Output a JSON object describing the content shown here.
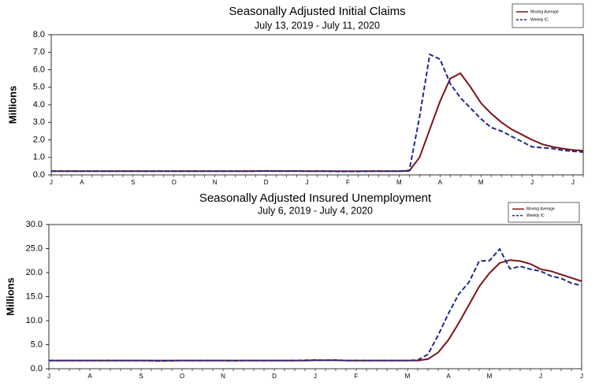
{
  "chart_data": [
    {
      "type": "line",
      "title": "Seasonally Adjusted Initial Claims",
      "subtitle": "July 13, 2019 - July 11, 2020",
      "y_label": "Millions",
      "categories": [
        "J",
        null,
        null,
        "A",
        null,
        null,
        null,
        null,
        "S",
        null,
        null,
        null,
        "O",
        null,
        null,
        null,
        "N",
        null,
        null,
        null,
        null,
        "D",
        null,
        null,
        null,
        "J",
        null,
        null,
        null,
        "F",
        null,
        null,
        null,
        null,
        "M",
        null,
        null,
        null,
        "A",
        null,
        null,
        null,
        "M",
        null,
        null,
        null,
        null,
        "J",
        null,
        null,
        null,
        "J",
        null
      ],
      "series": [
        {
          "name": "Moving Average",
          "color": "#7b1416",
          "style": "solid",
          "values": [
            0.21,
            0.21,
            0.21,
            0.21,
            0.21,
            0.21,
            0.21,
            0.21,
            0.21,
            0.21,
            0.21,
            0.21,
            0.21,
            0.21,
            0.21,
            0.21,
            0.21,
            0.21,
            0.21,
            0.21,
            0.22,
            0.22,
            0.22,
            0.22,
            0.22,
            0.21,
            0.21,
            0.21,
            0.21,
            0.21,
            0.21,
            0.21,
            0.21,
            0.21,
            0.21,
            0.23,
            1.0,
            2.6,
            4.2,
            5.5,
            5.8,
            5.0,
            4.1,
            3.5,
            3.0,
            2.6,
            2.3,
            2.0,
            1.75,
            1.6,
            1.5,
            1.42,
            1.38
          ]
        },
        {
          "name": "Weekly IC",
          "color": "#1f2a8c",
          "style": "dashed",
          "values": [
            0.21,
            0.21,
            0.21,
            0.21,
            0.21,
            0.21,
            0.21,
            0.21,
            0.21,
            0.21,
            0.21,
            0.21,
            0.21,
            0.21,
            0.21,
            0.21,
            0.21,
            0.21,
            0.21,
            0.21,
            0.22,
            0.23,
            0.22,
            0.21,
            0.22,
            0.21,
            0.21,
            0.21,
            0.2,
            0.2,
            0.2,
            0.21,
            0.21,
            0.21,
            0.21,
            0.25,
            3.3,
            6.87,
            6.6,
            5.2,
            4.4,
            3.8,
            3.2,
            2.7,
            2.5,
            2.2,
            1.9,
            1.6,
            1.55,
            1.5,
            1.4,
            1.35,
            1.3
          ]
        }
      ],
      "ylim": [
        0,
        8
      ],
      "yticks": [
        {
          "value": 0,
          "label": "0.0"
        },
        {
          "value": 1,
          "label": "1.0"
        },
        {
          "value": 2,
          "label": "2.0"
        },
        {
          "value": 3,
          "label": "3.0"
        },
        {
          "value": 4,
          "label": "4.0"
        },
        {
          "value": 5,
          "label": "5.0"
        },
        {
          "value": 6,
          "label": "6.0"
        },
        {
          "value": 7,
          "label": "7.0"
        },
        {
          "value": 8,
          "label": "8.0"
        }
      ],
      "grid": false,
      "legend": "upper right"
    },
    {
      "type": "line",
      "title": "Seasonally Adjusted Insured Unemployment",
      "subtitle": "July 6, 2019 - July 4, 2020",
      "y_label": "Millions",
      "categories": [
        "J",
        null,
        null,
        null,
        "A",
        null,
        null,
        null,
        null,
        "S",
        null,
        null,
        null,
        "O",
        null,
        null,
        null,
        "N",
        null,
        null,
        null,
        null,
        "D",
        null,
        null,
        null,
        "J",
        null,
        null,
        null,
        "F",
        null,
        null,
        null,
        null,
        "M",
        null,
        null,
        null,
        "A",
        null,
        null,
        null,
        "M",
        null,
        null,
        null,
        null,
        "J",
        null,
        null,
        null,
        "J"
      ],
      "series": [
        {
          "name": "Moving Average",
          "color": "#7b1416",
          "style": "solid",
          "values": [
            1.7,
            1.7,
            1.7,
            1.7,
            1.7,
            1.7,
            1.7,
            1.7,
            1.7,
            1.7,
            1.7,
            1.7,
            1.7,
            1.7,
            1.7,
            1.7,
            1.7,
            1.7,
            1.7,
            1.7,
            1.7,
            1.7,
            1.7,
            1.7,
            1.7,
            1.7,
            1.75,
            1.75,
            1.75,
            1.7,
            1.7,
            1.7,
            1.7,
            1.7,
            1.7,
            1.7,
            1.7,
            2.0,
            3.4,
            6.0,
            9.5,
            13.3,
            17.1,
            19.9,
            22.0,
            22.6,
            22.4,
            21.8,
            20.7,
            20.3,
            19.6,
            18.9,
            18.2
          ]
        },
        {
          "name": "Weekly IC",
          "color": "#1f2a8c",
          "style": "dashed",
          "values": [
            1.7,
            1.7,
            1.7,
            1.7,
            1.7,
            1.7,
            1.7,
            1.7,
            1.7,
            1.7,
            1.65,
            1.6,
            1.65,
            1.7,
            1.7,
            1.7,
            1.7,
            1.7,
            1.65,
            1.7,
            1.7,
            1.7,
            1.7,
            1.7,
            1.7,
            1.75,
            1.8,
            1.75,
            1.8,
            1.7,
            1.7,
            1.7,
            1.7,
            1.7,
            1.7,
            1.7,
            1.8,
            3.0,
            7.0,
            11.5,
            15.5,
            18.0,
            22.4,
            22.5,
            24.9,
            20.8,
            21.3,
            20.7,
            20.3,
            19.3,
            18.8,
            17.8,
            17.3
          ]
        }
      ],
      "ylim": [
        0,
        30
      ],
      "yticks": [
        {
          "value": 0,
          "label": "0.0"
        },
        {
          "value": 5,
          "label": "5.0"
        },
        {
          "value": 10,
          "label": "10.0"
        },
        {
          "value": 15,
          "label": "15.0"
        },
        {
          "value": 20,
          "label": "20.0"
        },
        {
          "value": 25,
          "label": "25.0"
        },
        {
          "value": 30,
          "label": "30.0"
        }
      ],
      "grid": false,
      "legend": "upper right"
    }
  ]
}
